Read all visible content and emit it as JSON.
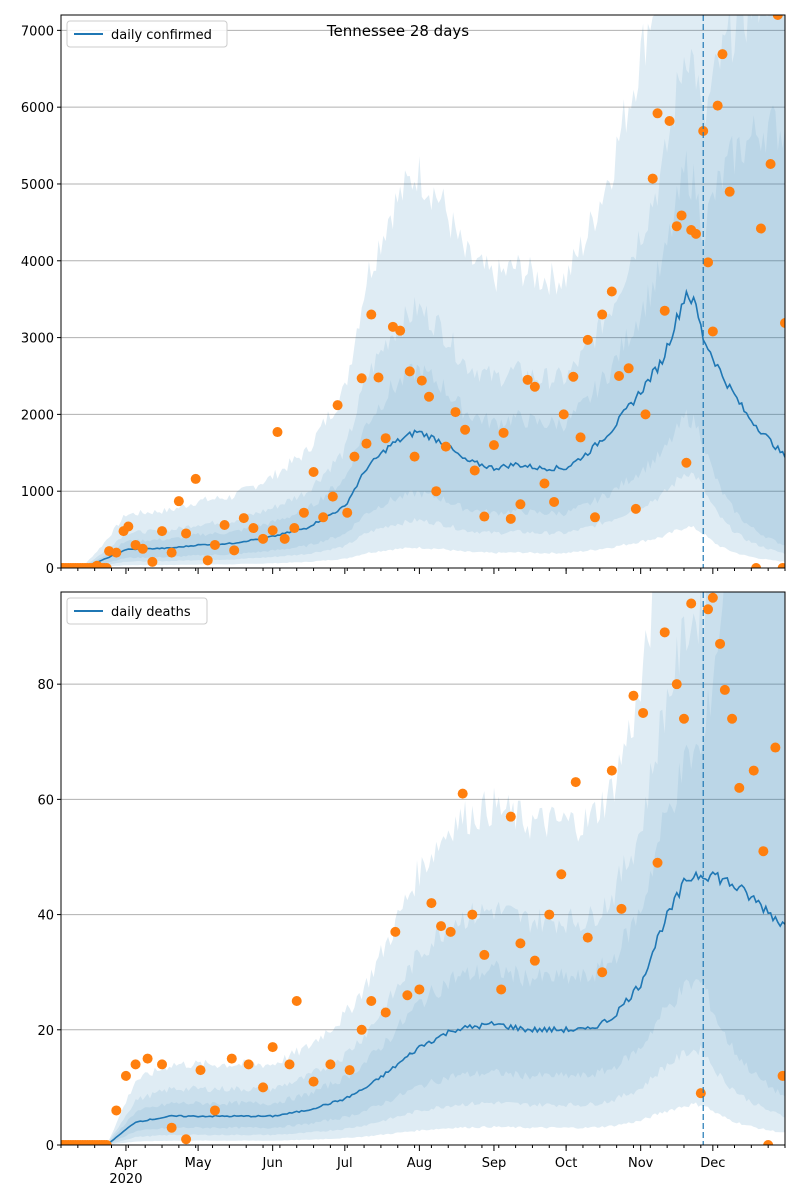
{
  "title": "Tennessee 28 days",
  "colors": {
    "line": "#1f77b4",
    "points": "#ff7f0e",
    "band": "#1f77b4",
    "grid": "#b0b0b0",
    "forecast_line": "#1f77b4"
  },
  "x_axis": {
    "month_labels": [
      "Apr",
      "May",
      "Jun",
      "Jul",
      "Aug",
      "Sep",
      "Oct",
      "Nov",
      "Dec"
    ],
    "year_label": "2020",
    "start_date": "2020-03-05",
    "end_date": "2020-12-31"
  },
  "forecast_start_date": "2020-11-27",
  "chart_data": [
    {
      "type": "line",
      "legend": "daily confirmed",
      "legend_position": "top-left",
      "ylim": [
        0,
        7200
      ],
      "yticks": [
        0,
        1000,
        2000,
        3000,
        4000,
        5000,
        6000,
        7000
      ],
      "grid": "y",
      "line_keypoints": [
        [
          "2020-03-05",
          0
        ],
        [
          "2020-03-14",
          5
        ],
        [
          "2020-03-22",
          100
        ],
        [
          "2020-04-01",
          240
        ],
        [
          "2020-04-20",
          260
        ],
        [
          "2020-05-01",
          300
        ],
        [
          "2020-05-15",
          320
        ],
        [
          "2020-06-01",
          410
        ],
        [
          "2020-06-15",
          520
        ],
        [
          "2020-07-01",
          800
        ],
        [
          "2020-07-10",
          1300
        ],
        [
          "2020-07-20",
          1600
        ],
        [
          "2020-07-31",
          1780
        ],
        [
          "2020-08-10",
          1650
        ],
        [
          "2020-08-20",
          1400
        ],
        [
          "2020-09-01",
          1300
        ],
        [
          "2020-09-10",
          1350
        ],
        [
          "2020-09-20",
          1300
        ],
        [
          "2020-10-01",
          1300
        ],
        [
          "2020-10-10",
          1500
        ],
        [
          "2020-10-20",
          1800
        ],
        [
          "2020-11-01",
          2300
        ],
        [
          "2020-11-10",
          2700
        ],
        [
          "2020-11-20",
          3600
        ],
        [
          "2020-11-24",
          3400
        ],
        [
          "2020-11-27",
          3000
        ],
        [
          "2020-12-05",
          2500
        ],
        [
          "2020-12-15",
          2000
        ],
        [
          "2020-12-25",
          1650
        ],
        [
          "2020-12-31",
          1450
        ]
      ],
      "bands": [
        {
          "lower_frac": 0.55,
          "upper_frac": 1.45
        },
        {
          "lower_frac": 0.35,
          "upper_frac": 1.9
        },
        {
          "lower_frac": 0.15,
          "upper_frac": 2.9
        }
      ],
      "points": [
        [
          "2020-03-20",
          30
        ],
        [
          "2020-03-25",
          220
        ],
        [
          "2020-03-28",
          200
        ],
        [
          "2020-03-31",
          480
        ],
        [
          "2020-04-02",
          540
        ],
        [
          "2020-04-05",
          300
        ],
        [
          "2020-04-08",
          250
        ],
        [
          "2020-04-12",
          80
        ],
        [
          "2020-04-16",
          480
        ],
        [
          "2020-04-20",
          200
        ],
        [
          "2020-04-23",
          870
        ],
        [
          "2020-04-26",
          450
        ],
        [
          "2020-04-30",
          1160
        ],
        [
          "2020-05-05",
          100
        ],
        [
          "2020-05-08",
          300
        ],
        [
          "2020-05-12",
          560
        ],
        [
          "2020-05-16",
          230
        ],
        [
          "2020-05-20",
          650
        ],
        [
          "2020-05-24",
          520
        ],
        [
          "2020-05-28",
          380
        ],
        [
          "2020-06-01",
          490
        ],
        [
          "2020-06-03",
          1770
        ],
        [
          "2020-06-06",
          380
        ],
        [
          "2020-06-10",
          520
        ],
        [
          "2020-06-14",
          720
        ],
        [
          "2020-06-18",
          1250
        ],
        [
          "2020-06-22",
          660
        ],
        [
          "2020-06-26",
          930
        ],
        [
          "2020-06-28",
          2120
        ],
        [
          "2020-07-02",
          720
        ],
        [
          "2020-07-05",
          1450
        ],
        [
          "2020-07-08",
          2470
        ],
        [
          "2020-07-10",
          1620
        ],
        [
          "2020-07-12",
          3300
        ],
        [
          "2020-07-15",
          2480
        ],
        [
          "2020-07-18",
          1690
        ],
        [
          "2020-07-21",
          3140
        ],
        [
          "2020-07-24",
          3090
        ],
        [
          "2020-07-28",
          2560
        ],
        [
          "2020-07-30",
          1450
        ],
        [
          "2020-08-02",
          2440
        ],
        [
          "2020-08-05",
          2230
        ],
        [
          "2020-08-08",
          1000
        ],
        [
          "2020-08-12",
          1580
        ],
        [
          "2020-08-16",
          2030
        ],
        [
          "2020-08-20",
          1800
        ],
        [
          "2020-08-24",
          1270
        ],
        [
          "2020-08-28",
          670
        ],
        [
          "2020-09-01",
          1600
        ],
        [
          "2020-09-05",
          1760
        ],
        [
          "2020-09-08",
          640
        ],
        [
          "2020-09-12",
          830
        ],
        [
          "2020-09-15",
          2450
        ],
        [
          "2020-09-18",
          2360
        ],
        [
          "2020-09-22",
          1100
        ],
        [
          "2020-09-26",
          860
        ],
        [
          "2020-09-30",
          2000
        ],
        [
          "2020-10-04",
          2490
        ],
        [
          "2020-10-07",
          1700
        ],
        [
          "2020-10-10",
          2970
        ],
        [
          "2020-10-13",
          660
        ],
        [
          "2020-10-16",
          3300
        ],
        [
          "2020-10-20",
          3600
        ],
        [
          "2020-10-23",
          2500
        ],
        [
          "2020-10-27",
          2600
        ],
        [
          "2020-10-30",
          770
        ],
        [
          "2020-11-03",
          2000
        ],
        [
          "2020-11-06",
          5070
        ],
        [
          "2020-11-08",
          5920
        ],
        [
          "2020-11-11",
          3350
        ],
        [
          "2020-11-13",
          5820
        ],
        [
          "2020-11-16",
          4450
        ],
        [
          "2020-11-18",
          4590
        ],
        [
          "2020-11-20",
          1370
        ],
        [
          "2020-11-22",
          4400
        ],
        [
          "2020-11-24",
          4350
        ],
        [
          "2020-11-27",
          5690
        ],
        [
          "2020-11-29",
          3980
        ],
        [
          "2020-12-01",
          3080
        ],
        [
          "2020-12-03",
          6020
        ],
        [
          "2020-12-05",
          6690
        ],
        [
          "2020-12-08",
          4900
        ],
        [
          "2020-12-21",
          4420
        ],
        [
          "2020-12-25",
          5260
        ],
        [
          "2020-12-28",
          7200
        ],
        [
          "2020-12-31",
          3190
        ],
        [
          "2020-12-19",
          0
        ],
        [
          "2020-12-30",
          0
        ]
      ]
    },
    {
      "type": "line",
      "legend": "daily deaths",
      "legend_position": "top-left",
      "ylim": [
        0,
        96
      ],
      "yticks": [
        0,
        20,
        40,
        60,
        80
      ],
      "grid": "y",
      "line_keypoints": [
        [
          "2020-03-05",
          0
        ],
        [
          "2020-03-24",
          0
        ],
        [
          "2020-03-30",
          2
        ],
        [
          "2020-04-05",
          4
        ],
        [
          "2020-04-20",
          5
        ],
        [
          "2020-05-10",
          5
        ],
        [
          "2020-06-01",
          5
        ],
        [
          "2020-06-15",
          6
        ],
        [
          "2020-07-01",
          8
        ],
        [
          "2020-07-10",
          10
        ],
        [
          "2020-07-20",
          13
        ],
        [
          "2020-08-01",
          17
        ],
        [
          "2020-08-15",
          20
        ],
        [
          "2020-09-01",
          21
        ],
        [
          "2020-09-15",
          20
        ],
        [
          "2020-10-01",
          20
        ],
        [
          "2020-10-10",
          20
        ],
        [
          "2020-10-20",
          22
        ],
        [
          "2020-11-01",
          28
        ],
        [
          "2020-11-10",
          38
        ],
        [
          "2020-11-20",
          46
        ],
        [
          "2020-11-24",
          47
        ],
        [
          "2020-12-01",
          47
        ],
        [
          "2020-12-10",
          45
        ],
        [
          "2020-12-20",
          42
        ],
        [
          "2020-12-31",
          38
        ]
      ],
      "bands": [
        {
          "lower_frac": 0.6,
          "upper_frac": 1.45
        },
        {
          "lower_frac": 0.35,
          "upper_frac": 1.95
        },
        {
          "lower_frac": 0.15,
          "upper_frac": 2.8
        }
      ],
      "points": [
        [
          "2020-03-28",
          6
        ],
        [
          "2020-04-01",
          12
        ],
        [
          "2020-04-05",
          14
        ],
        [
          "2020-04-10",
          15
        ],
        [
          "2020-04-16",
          14
        ],
        [
          "2020-04-20",
          3
        ],
        [
          "2020-04-26",
          1
        ],
        [
          "2020-05-02",
          13
        ],
        [
          "2020-05-08",
          6
        ],
        [
          "2020-05-15",
          15
        ],
        [
          "2020-05-22",
          14
        ],
        [
          "2020-05-28",
          10
        ],
        [
          "2020-06-01",
          17
        ],
        [
          "2020-06-08",
          14
        ],
        [
          "2020-06-11",
          25
        ],
        [
          "2020-06-18",
          11
        ],
        [
          "2020-06-25",
          14
        ],
        [
          "2020-07-03",
          13
        ],
        [
          "2020-07-08",
          20
        ],
        [
          "2020-07-12",
          25
        ],
        [
          "2020-07-18",
          23
        ],
        [
          "2020-07-22",
          37
        ],
        [
          "2020-07-27",
          26
        ],
        [
          "2020-08-01",
          27
        ],
        [
          "2020-08-06",
          42
        ],
        [
          "2020-08-10",
          38
        ],
        [
          "2020-08-14",
          37
        ],
        [
          "2020-08-19",
          61
        ],
        [
          "2020-08-23",
          40
        ],
        [
          "2020-08-28",
          33
        ],
        [
          "2020-09-04",
          27
        ],
        [
          "2020-09-08",
          57
        ],
        [
          "2020-09-12",
          35
        ],
        [
          "2020-09-18",
          32
        ],
        [
          "2020-09-24",
          40
        ],
        [
          "2020-09-29",
          47
        ],
        [
          "2020-10-05",
          63
        ],
        [
          "2020-10-10",
          36
        ],
        [
          "2020-10-16",
          30
        ],
        [
          "2020-10-20",
          65
        ],
        [
          "2020-10-24",
          41
        ],
        [
          "2020-10-29",
          78
        ],
        [
          "2020-11-02",
          75
        ],
        [
          "2020-11-08",
          49
        ],
        [
          "2020-11-11",
          89
        ],
        [
          "2020-11-16",
          80
        ],
        [
          "2020-11-19",
          74
        ],
        [
          "2020-11-22",
          94
        ],
        [
          "2020-11-26",
          9
        ],
        [
          "2020-11-29",
          93
        ],
        [
          "2020-12-01",
          95
        ],
        [
          "2020-12-04",
          87
        ],
        [
          "2020-12-06",
          79
        ],
        [
          "2020-12-09",
          74
        ],
        [
          "2020-12-12",
          62
        ],
        [
          "2020-12-18",
          65
        ],
        [
          "2020-12-22",
          51
        ],
        [
          "2020-12-27",
          69
        ],
        [
          "2020-12-30",
          12
        ],
        [
          "2020-12-24",
          0
        ]
      ]
    }
  ]
}
